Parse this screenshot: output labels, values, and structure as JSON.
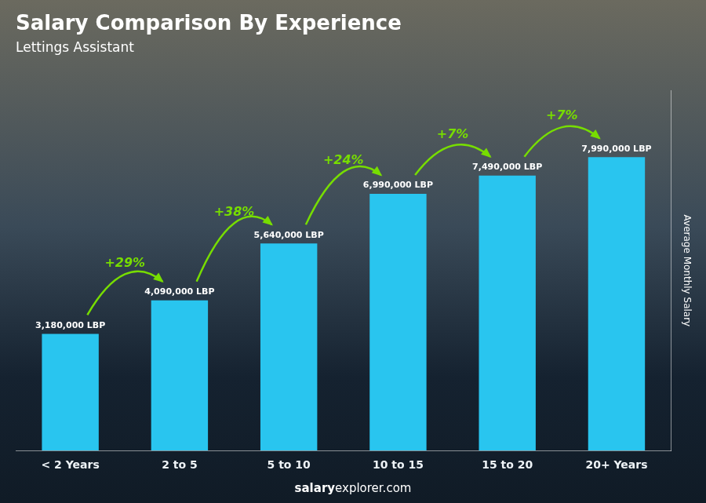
{
  "chart_data": {
    "type": "bar",
    "title": "Salary Comparison By Experience",
    "subtitle": "Lettings Assistant",
    "y_label": "Average Monthly Salary",
    "categories": [
      "< 2 Years",
      "2 to 5",
      "5 to 10",
      "10 to 15",
      "15 to 20",
      "20+ Years"
    ],
    "values": [
      3180000,
      4090000,
      5640000,
      6990000,
      7490000,
      7990000
    ],
    "value_labels": [
      "3,180,000 LBP",
      "4,090,000 LBP",
      "5,640,000 LBP",
      "6,990,000 LBP",
      "7,490,000 LBP",
      "7,990,000 LBP"
    ],
    "data_labels": true,
    "color": "#29c5ef",
    "ylim": [
      0,
      9800000
    ],
    "grid": false,
    "tick_labels": "x",
    "annotations": [
      {
        "text": "+29%",
        "from": "< 2 Years",
        "to": "2 to 5",
        "color": "#77dd00"
      },
      {
        "text": "+38%",
        "from": "2 to 5",
        "to": "5 to 10",
        "color": "#77dd00"
      },
      {
        "text": "+24%",
        "from": "5 to 10",
        "to": "10 to 15",
        "color": "#77dd00"
      },
      {
        "text": "+7%",
        "from": "10 to 15",
        "to": "15 to 20",
        "color": "#77dd00"
      },
      {
        "text": "+7%",
        "from": "15 to 20",
        "to": "20+ Years",
        "color": "#77dd00"
      }
    ],
    "watermark": [
      "salary",
      "explorer.com"
    ]
  }
}
